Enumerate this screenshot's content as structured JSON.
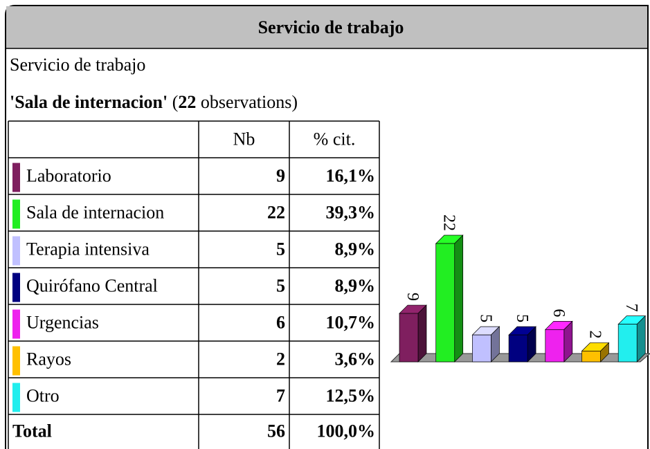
{
  "header": {
    "title": "Servicio de trabajo"
  },
  "subtitle": "Servicio de trabajo",
  "heading": {
    "name": "'Sala de internacion'",
    "open": "(",
    "count": "22",
    "rest": "observations)"
  },
  "table": {
    "columns": [
      "Nb",
      "% cit."
    ],
    "rows": [
      [
        "Laboratorio",
        "9",
        "16,1%"
      ],
      [
        "Sala de internacion",
        "22",
        "39,3%"
      ],
      [
        "Terapia intensiva",
        "5",
        "8,9%"
      ],
      [
        "Quirófano Central",
        "5",
        "8,9%"
      ],
      [
        "Urgencias",
        "6",
        "10,7%"
      ],
      [
        "Rayos",
        "2",
        "3,6%"
      ],
      [
        "Otro",
        "7",
        "12,5%"
      ]
    ],
    "total": [
      "Total",
      "56",
      "100,0%"
    ]
  },
  "chart_data": {
    "type": "bar",
    "categories": [
      null,
      null,
      null,
      null,
      null,
      null,
      null
    ],
    "values": [
      9,
      22,
      5,
      5,
      6,
      2,
      7
    ],
    "colors": [
      "#7f1f5f",
      "#22ee22",
      "#c0c0ff",
      "#000080",
      "#ee22ee",
      "#ffc000",
      "#22eeee"
    ]
  }
}
